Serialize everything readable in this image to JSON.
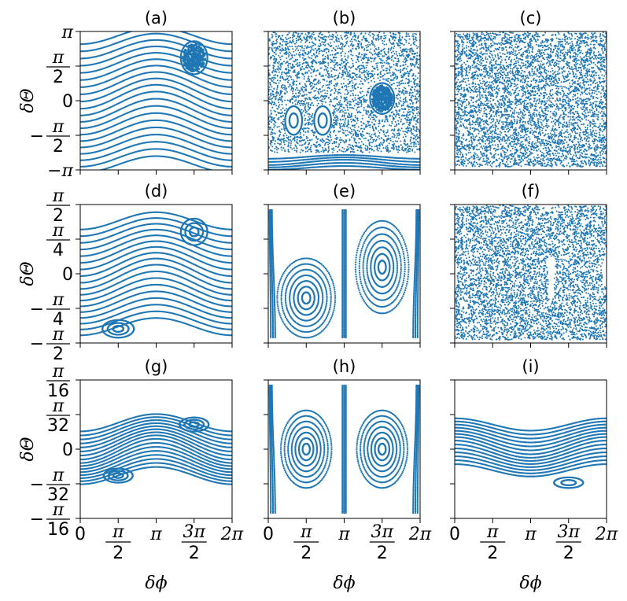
{
  "colors": {
    "points": "#1f77b4",
    "axes": "#000000",
    "background": "#ffffff"
  },
  "chart_data": {
    "type": "scatter",
    "description_kind": "Poincare sections (3x3 grid of scatter panels)",
    "xlabel": "δϕ",
    "ylabel": "δΘ",
    "x_range": [
      0,
      6.2832
    ],
    "x_tick_labels": [
      {
        "value": 0,
        "num": "0",
        "den": ""
      },
      {
        "value": 1.5708,
        "num": "π",
        "den": "2"
      },
      {
        "value": 3.1416,
        "num": "π",
        "den": ""
      },
      {
        "value": 4.7124,
        "num": "3π",
        "den": "2"
      },
      {
        "value": 6.2832,
        "num": "2π",
        "den": ""
      }
    ],
    "rows": [
      {
        "y_range": [
          -3.1416,
          3.1416
        ],
        "y_tick_labels": [
          {
            "value": 3.1416,
            "sign": "",
            "num": "π",
            "den": ""
          },
          {
            "value": 1.5708,
            "sign": "",
            "num": "π",
            "den": "2"
          },
          {
            "value": 0,
            "sign": "",
            "num": "0",
            "den": ""
          },
          {
            "value": -1.5708,
            "sign": "−",
            "num": "π",
            "den": "2"
          },
          {
            "value": -3.1416,
            "sign": "−",
            "num": "π",
            "den": ""
          }
        ]
      },
      {
        "y_range": [
          -1.5708,
          1.5708
        ],
        "y_tick_labels": [
          {
            "value": 1.5708,
            "sign": "",
            "num": "π",
            "den": "2"
          },
          {
            "value": 0.7854,
            "sign": "",
            "num": "π",
            "den": "4"
          },
          {
            "value": 0,
            "sign": "",
            "num": "0",
            "den": ""
          },
          {
            "value": -0.7854,
            "sign": "−",
            "num": "π",
            "den": "4"
          },
          {
            "value": -1.5708,
            "sign": "−",
            "num": "π",
            "den": "2"
          }
        ]
      },
      {
        "y_range": [
          -0.19635,
          0.19635
        ],
        "y_tick_labels": [
          {
            "value": 0.19635,
            "sign": "",
            "num": "π",
            "den": "16"
          },
          {
            "value": 0.09817,
            "sign": "",
            "num": "π",
            "den": "32"
          },
          {
            "value": 0,
            "sign": "",
            "num": "0",
            "den": ""
          },
          {
            "value": -0.09817,
            "sign": "−",
            "num": "π",
            "den": "32"
          },
          {
            "value": -0.19635,
            "sign": "−",
            "num": "π",
            "den": "16"
          }
        ]
      }
    ],
    "panels": [
      {
        "title": "(a)",
        "row": 0,
        "col": 0,
        "regime": "regular",
        "band": {
          "amp": 0.55,
          "phase": 4.712,
          "top": 2.95,
          "bottom": -2.9,
          "lines": 20
        },
        "islands": [
          {
            "x": 4.712,
            "y": 1.95,
            "rx": 0.55,
            "ry": 0.75,
            "rings": 2,
            "fill": true
          }
        ]
      },
      {
        "title": "(b)",
        "row": 0,
        "col": 1,
        "regime": "mixed",
        "chaos": {
          "count": 3600,
          "y_min": -2.5,
          "y_max": 3.1
        },
        "band": {
          "amp": 0.12,
          "phase": 4.712,
          "top": -2.55,
          "bottom": -3.05,
          "lines": 5
        },
        "islands": [
          {
            "x": 4.712,
            "y": 0.1,
            "rx": 0.5,
            "ry": 0.7,
            "rings": 3,
            "fill": true
          },
          {
            "x": 1.05,
            "y": -0.9,
            "rx": 0.35,
            "ry": 0.65,
            "rings": 2,
            "fill": false
          },
          {
            "x": 2.25,
            "y": -0.9,
            "rx": 0.35,
            "ry": 0.65,
            "rings": 2,
            "fill": false
          }
        ]
      },
      {
        "title": "(c)",
        "row": 0,
        "col": 2,
        "regime": "chaotic",
        "chaos": {
          "count": 5000,
          "y_min": -3.0,
          "y_max": 3.1
        }
      },
      {
        "title": "(d)",
        "row": 1,
        "col": 0,
        "regime": "regular",
        "band": {
          "amp": 0.28,
          "phase": 4.712,
          "top": 1.2,
          "bottom": -1.2,
          "lines": 18
        },
        "islands": [
          {
            "x": 4.712,
            "y": 0.95,
            "rx": 0.55,
            "ry": 0.3,
            "rings": 3,
            "fill": false
          },
          {
            "x": 1.57,
            "y": -1.25,
            "rx": 0.65,
            "ry": 0.2,
            "rings": 3,
            "fill": false
          }
        ]
      },
      {
        "title": "(e)",
        "row": 1,
        "col": 1,
        "regime": "regular",
        "islands": [
          {
            "x": 1.57,
            "y": -0.55,
            "rx": 1.2,
            "ry": 0.9,
            "rings": 7,
            "fill": false
          },
          {
            "x": 4.712,
            "y": 0.15,
            "rx": 1.1,
            "ry": 1.05,
            "rings": 7,
            "fill": false
          }
        ],
        "edges": true
      },
      {
        "title": "(f)",
        "row": 1,
        "col": 2,
        "regime": "chaotic",
        "chaos": {
          "count": 5000,
          "y_min": -1.5,
          "y_max": 1.55
        }
      },
      {
        "title": "(g)",
        "row": 2,
        "col": 0,
        "regime": "regular",
        "band": {
          "amp": 0.035,
          "phase": 4.712,
          "top": 0.075,
          "bottom": -0.075,
          "lines": 16
        },
        "islands": [
          {
            "x": 4.712,
            "y": 0.07,
            "rx": 0.6,
            "ry": 0.02,
            "rings": 3,
            "fill": false
          },
          {
            "x": 1.57,
            "y": -0.075,
            "rx": 0.6,
            "ry": 0.02,
            "rings": 3,
            "fill": false
          }
        ]
      },
      {
        "title": "(h)",
        "row": 2,
        "col": 1,
        "regime": "regular",
        "islands": [
          {
            "x": 1.57,
            "y": 0.0,
            "rx": 1.05,
            "ry": 0.11,
            "rings": 7,
            "fill": false
          },
          {
            "x": 4.712,
            "y": 0.0,
            "rx": 1.05,
            "ry": 0.11,
            "rings": 7,
            "fill": false
          }
        ],
        "edges": true
      },
      {
        "title": "(i)",
        "row": 2,
        "col": 2,
        "regime": "regular",
        "band": {
          "amp": 0.025,
          "phase": 1.571,
          "top": 0.07,
          "bottom": -0.06,
          "lines": 14
        },
        "islands": [
          {
            "x": 4.712,
            "y": -0.095,
            "rx": 0.6,
            "ry": 0.015,
            "rings": 2,
            "fill": false
          }
        ]
      }
    ]
  }
}
